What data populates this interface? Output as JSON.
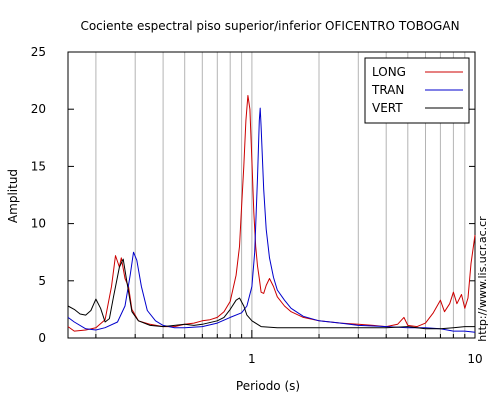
{
  "chart_data": {
    "type": "line",
    "title": "Cociente espectral piso superior/inferior OFICENTRO TOBOGAN",
    "xlabel": "Periodo (s)",
    "ylabel": "Amplitud",
    "watermark": "http://www.lis.ucr.ac.cr",
    "x_scale": "log",
    "xlim": [
      0.15,
      10
    ],
    "ylim": [
      0,
      25
    ],
    "x_ticks": [
      {
        "value": 1,
        "label": "1"
      },
      {
        "value": 10,
        "label": "10"
      }
    ],
    "y_ticks": [
      0,
      5,
      10,
      15,
      20,
      25
    ],
    "grid": "vertical",
    "legend_position": "top-right",
    "series": [
      {
        "name": "LONG",
        "color": "#cc0000",
        "points": [
          [
            0.15,
            1.0
          ],
          [
            0.16,
            0.6
          ],
          [
            0.18,
            0.7
          ],
          [
            0.2,
            0.9
          ],
          [
            0.22,
            1.6
          ],
          [
            0.235,
            4.5
          ],
          [
            0.245,
            7.2
          ],
          [
            0.255,
            6.2
          ],
          [
            0.26,
            7.0
          ],
          [
            0.27,
            5.2
          ],
          [
            0.28,
            4.5
          ],
          [
            0.29,
            2.5
          ],
          [
            0.31,
            1.5
          ],
          [
            0.35,
            1.2
          ],
          [
            0.4,
            1.0
          ],
          [
            0.45,
            1.0
          ],
          [
            0.5,
            1.2
          ],
          [
            0.55,
            1.3
          ],
          [
            0.6,
            1.5
          ],
          [
            0.65,
            1.6
          ],
          [
            0.7,
            1.8
          ],
          [
            0.75,
            2.3
          ],
          [
            0.8,
            3.2
          ],
          [
            0.85,
            5.5
          ],
          [
            0.88,
            8.0
          ],
          [
            0.9,
            11.5
          ],
          [
            0.92,
            15.0
          ],
          [
            0.94,
            19.0
          ],
          [
            0.96,
            21.2
          ],
          [
            0.98,
            20.0
          ],
          [
            1.0,
            15.5
          ],
          [
            1.02,
            11.0
          ],
          [
            1.04,
            8.0
          ],
          [
            1.06,
            6.3
          ],
          [
            1.08,
            5.2
          ],
          [
            1.1,
            4.0
          ],
          [
            1.13,
            3.9
          ],
          [
            1.16,
            4.6
          ],
          [
            1.2,
            5.2
          ],
          [
            1.25,
            4.5
          ],
          [
            1.3,
            3.6
          ],
          [
            1.4,
            2.8
          ],
          [
            1.5,
            2.3
          ],
          [
            1.7,
            1.8
          ],
          [
            2.0,
            1.5
          ],
          [
            2.5,
            1.3
          ],
          [
            3.0,
            1.2
          ],
          [
            3.5,
            1.1
          ],
          [
            4.0,
            1.0
          ],
          [
            4.5,
            1.2
          ],
          [
            4.8,
            1.8
          ],
          [
            5.0,
            1.1
          ],
          [
            5.5,
            1.0
          ],
          [
            6.0,
            1.3
          ],
          [
            6.5,
            2.2
          ],
          [
            7.0,
            3.3
          ],
          [
            7.3,
            2.3
          ],
          [
            7.7,
            3.0
          ],
          [
            8.0,
            4.0
          ],
          [
            8.3,
            3.0
          ],
          [
            8.7,
            3.8
          ],
          [
            9.0,
            2.6
          ],
          [
            9.3,
            3.5
          ],
          [
            9.6,
            6.5
          ],
          [
            10.0,
            9.0
          ]
        ]
      },
      {
        "name": "TRAN",
        "color": "#0000cc",
        "points": [
          [
            0.15,
            1.8
          ],
          [
            0.16,
            1.4
          ],
          [
            0.18,
            0.8
          ],
          [
            0.2,
            0.7
          ],
          [
            0.22,
            0.9
          ],
          [
            0.25,
            1.4
          ],
          [
            0.27,
            2.8
          ],
          [
            0.285,
            5.5
          ],
          [
            0.295,
            7.5
          ],
          [
            0.305,
            6.8
          ],
          [
            0.32,
            4.5
          ],
          [
            0.34,
            2.4
          ],
          [
            0.37,
            1.5
          ],
          [
            0.4,
            1.1
          ],
          [
            0.45,
            0.9
          ],
          [
            0.5,
            0.9
          ],
          [
            0.6,
            1.0
          ],
          [
            0.7,
            1.3
          ],
          [
            0.8,
            1.8
          ],
          [
            0.9,
            2.2
          ],
          [
            0.95,
            2.8
          ],
          [
            1.0,
            4.5
          ],
          [
            1.03,
            7.5
          ],
          [
            1.06,
            14.0
          ],
          [
            1.08,
            19.0
          ],
          [
            1.09,
            20.1
          ],
          [
            1.1,
            18.5
          ],
          [
            1.13,
            13.0
          ],
          [
            1.16,
            9.5
          ],
          [
            1.2,
            7.0
          ],
          [
            1.25,
            5.3
          ],
          [
            1.3,
            4.2
          ],
          [
            1.4,
            3.3
          ],
          [
            1.5,
            2.6
          ],
          [
            1.7,
            1.9
          ],
          [
            2.0,
            1.5
          ],
          [
            2.5,
            1.3
          ],
          [
            3.0,
            1.1
          ],
          [
            4.0,
            1.0
          ],
          [
            5.0,
            0.9
          ],
          [
            6.0,
            0.9
          ],
          [
            7.0,
            0.8
          ],
          [
            8.0,
            0.6
          ],
          [
            9.0,
            0.6
          ],
          [
            10.0,
            0.5
          ]
        ]
      },
      {
        "name": "VERT",
        "color": "#000000",
        "points": [
          [
            0.15,
            2.8
          ],
          [
            0.16,
            2.5
          ],
          [
            0.17,
            2.1
          ],
          [
            0.18,
            2.0
          ],
          [
            0.19,
            2.4
          ],
          [
            0.2,
            3.4
          ],
          [
            0.21,
            2.6
          ],
          [
            0.22,
            1.4
          ],
          [
            0.23,
            1.7
          ],
          [
            0.24,
            3.6
          ],
          [
            0.255,
            6.2
          ],
          [
            0.265,
            6.9
          ],
          [
            0.275,
            5.0
          ],
          [
            0.29,
            2.3
          ],
          [
            0.31,
            1.5
          ],
          [
            0.35,
            1.1
          ],
          [
            0.4,
            1.0
          ],
          [
            0.45,
            1.1
          ],
          [
            0.5,
            1.2
          ],
          [
            0.55,
            1.1
          ],
          [
            0.6,
            1.2
          ],
          [
            0.7,
            1.5
          ],
          [
            0.75,
            1.8
          ],
          [
            0.8,
            2.5
          ],
          [
            0.85,
            3.3
          ],
          [
            0.88,
            3.5
          ],
          [
            0.92,
            2.8
          ],
          [
            0.95,
            2.0
          ],
          [
            1.0,
            1.5
          ],
          [
            1.1,
            1.0
          ],
          [
            1.3,
            0.9
          ],
          [
            1.5,
            0.9
          ],
          [
            2.0,
            0.9
          ],
          [
            3.0,
            0.9
          ],
          [
            4.0,
            0.9
          ],
          [
            5.0,
            1.0
          ],
          [
            6.0,
            0.8
          ],
          [
            7.0,
            0.8
          ],
          [
            8.0,
            0.9
          ],
          [
            9.0,
            1.0
          ],
          [
            10.0,
            1.0
          ]
        ]
      }
    ]
  }
}
